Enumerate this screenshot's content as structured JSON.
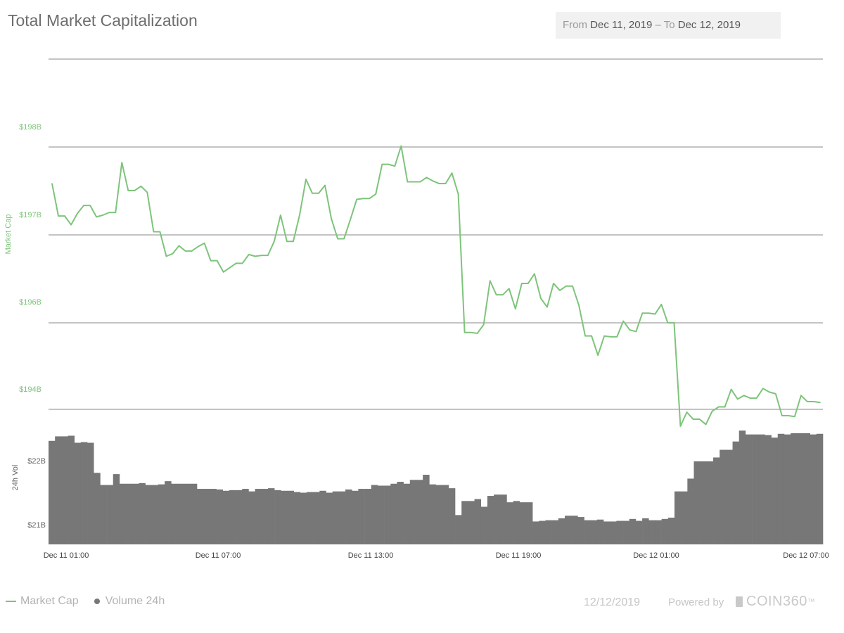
{
  "header": {
    "title": "Total Market Capitalization",
    "range_from_label": "From",
    "range_from_value": "Dec 11, 2019",
    "range_sep": "–",
    "range_to_label": "To",
    "range_to_value": "Dec 12, 2019"
  },
  "footer": {
    "legend_market_cap": "Market Cap",
    "legend_volume": "Volume 24h",
    "date": "12/12/2019",
    "powered_by": "Powered by",
    "brand": "COIN360",
    "brand_tm": "™"
  },
  "colors": {
    "market_cap": "#7dc47a",
    "volume": "#777777",
    "grid": "#8a8a8a"
  },
  "chart_data": [
    {
      "type": "line",
      "ylabel": "Market Cap",
      "yticks": [
        194,
        196,
        197,
        198
      ],
      "ytick_labels": [
        "$194B",
        "$196B",
        "$197B",
        "$198B"
      ],
      "ylim": [
        194,
        198
      ],
      "xtick_labels": [
        "Dec 11 01:00",
        "Dec 11 07:00",
        "Dec 11 13:00",
        "Dec 11 19:00",
        "Dec 12 01:00",
        "Dec 12 07:00"
      ],
      "series": [
        {
          "name": "Market Cap",
          "values": [
            197.59,
            197.22,
            197.22,
            197.12,
            197.25,
            197.34,
            197.34,
            197.21,
            197.23,
            197.26,
            197.26,
            197.83,
            197.51,
            197.51,
            197.56,
            197.49,
            197.04,
            197.04,
            196.76,
            196.79,
            196.88,
            196.82,
            196.82,
            196.87,
            196.91,
            196.71,
            196.71,
            196.58,
            196.63,
            196.68,
            196.68,
            196.78,
            196.76,
            196.77,
            196.77,
            196.93,
            197.23,
            196.93,
            196.93,
            197.23,
            197.64,
            197.48,
            197.48,
            197.57,
            197.19,
            196.96,
            196.96,
            197.18,
            197.41,
            197.42,
            197.42,
            197.47,
            197.81,
            197.81,
            197.79,
            198.02,
            197.61,
            197.61,
            197.61,
            197.66,
            197.62,
            197.59,
            197.59,
            197.71,
            197.47,
            195.89,
            195.89,
            195.88,
            195.98,
            196.48,
            196.32,
            196.32,
            196.39,
            196.16,
            196.45,
            196.45,
            196.56,
            196.28,
            196.18,
            196.45,
            196.37,
            196.42,
            196.42,
            196.2,
            195.85,
            195.85,
            195.63,
            195.85,
            195.84,
            195.84,
            196.02,
            195.92,
            195.9,
            196.11,
            196.11,
            196.1,
            196.21,
            196.0,
            196.0,
            194.82,
            194.98,
            194.9,
            194.9,
            194.84,
            194.99,
            195.04,
            195.04,
            195.24,
            195.13,
            195.17,
            195.14,
            195.14,
            195.25,
            195.21,
            195.19,
            194.94,
            194.94,
            194.93,
            195.17,
            195.1,
            195.1,
            195.09
          ]
        }
      ]
    },
    {
      "type": "bar",
      "ylabel": "24h Vol",
      "yticks": [
        21,
        22
      ],
      "ytick_labels": [
        "$21B",
        "$22B"
      ],
      "ylim": [
        20.7,
        22.4
      ],
      "series": [
        {
          "name": "Volume 24h",
          "values": [
            22.31,
            22.38,
            22.38,
            22.39,
            22.28,
            22.29,
            22.28,
            21.81,
            21.62,
            21.62,
            21.79,
            21.64,
            21.64,
            21.64,
            21.65,
            21.62,
            21.62,
            21.63,
            21.68,
            21.64,
            21.64,
            21.64,
            21.64,
            21.56,
            21.56,
            21.56,
            21.55,
            21.53,
            21.54,
            21.54,
            21.56,
            21.52,
            21.56,
            21.56,
            21.57,
            21.54,
            21.53,
            21.53,
            21.51,
            21.5,
            21.51,
            21.51,
            21.53,
            21.5,
            21.52,
            21.52,
            21.55,
            21.53,
            21.56,
            21.56,
            21.62,
            21.61,
            21.61,
            21.64,
            21.67,
            21.64,
            21.7,
            21.7,
            21.78,
            21.63,
            21.62,
            21.62,
            21.57,
            21.15,
            21.37,
            21.37,
            21.4,
            21.28,
            21.45,
            21.47,
            21.47,
            21.35,
            21.37,
            21.35,
            21.35,
            21.05,
            21.06,
            21.07,
            21.07,
            21.1,
            21.14,
            21.14,
            21.12,
            21.07,
            21.07,
            21.08,
            21.05,
            21.05,
            21.06,
            21.06,
            21.09,
            21.06,
            21.1,
            21.07,
            21.07,
            21.09,
            21.11,
            21.52,
            21.52,
            21.72,
            21.99,
            21.99,
            21.99,
            22.05,
            22.17,
            22.17,
            22.3,
            22.47,
            22.41,
            22.41,
            22.41,
            22.4,
            22.36,
            22.42,
            22.41,
            22.43,
            22.43,
            22.43,
            22.41,
            22.42
          ]
        }
      ]
    }
  ]
}
